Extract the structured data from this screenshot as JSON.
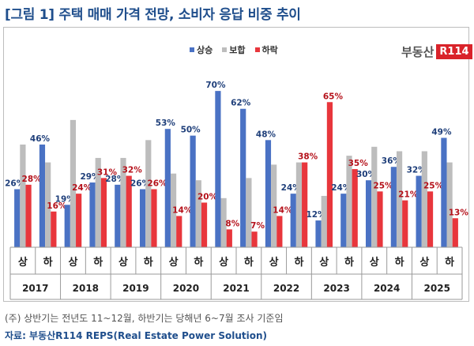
{
  "title": "[그림 1] 주택 매매 가격 전망, 소비자 응답 비중 추이",
  "logo": {
    "text": "부동산",
    "mark": "R114"
  },
  "footnote": "(주) 상반기는 전년도 11~12월, 하반기는 당해년 6~7월 조사 기준임",
  "source": "자료: 부동산R114 REPS(Real Estate Power Solution)",
  "colors": {
    "상승": "#4a72c4",
    "보합": "#bdbdbd",
    "하락": "#e8363c",
    "상승_label": "#1f3f7a",
    "하락_label": "#b5121b"
  },
  "chart_data": {
    "type": "bar",
    "ylim": [
      0,
      75
    ],
    "grid": false,
    "legend": "top",
    "years": [
      "2017",
      "2018",
      "2019",
      "2020",
      "2021",
      "2022",
      "2023",
      "2024",
      "2025"
    ],
    "halves": [
      "상",
      "하"
    ],
    "categories": [
      "2017 상",
      "2017 하",
      "2018 상",
      "2018 하",
      "2019 상",
      "2019 하",
      "2020 상",
      "2020 하",
      "2021 상",
      "2021 하",
      "2022 상",
      "2022 하",
      "2023 상",
      "2023 하",
      "2024 상",
      "2024 하",
      "2025 상",
      "2025 하"
    ],
    "series": [
      {
        "name": "상승",
        "values": [
          26,
          46,
          19,
          29,
          28,
          26,
          53,
          50,
          70,
          62,
          48,
          24,
          12,
          24,
          30,
          36,
          32,
          49
        ]
      },
      {
        "name": "보합",
        "values": [
          46,
          38,
          57,
          40,
          40,
          48,
          33,
          30,
          22,
          31,
          37,
          38,
          23,
          41,
          45,
          43,
          43,
          38
        ]
      },
      {
        "name": "하락",
        "values": [
          28,
          16,
          24,
          31,
          32,
          26,
          14,
          20,
          8,
          7,
          14,
          38,
          65,
          35,
          25,
          21,
          25,
          13
        ]
      }
    ],
    "label_series": [
      "상승",
      "하락"
    ]
  }
}
